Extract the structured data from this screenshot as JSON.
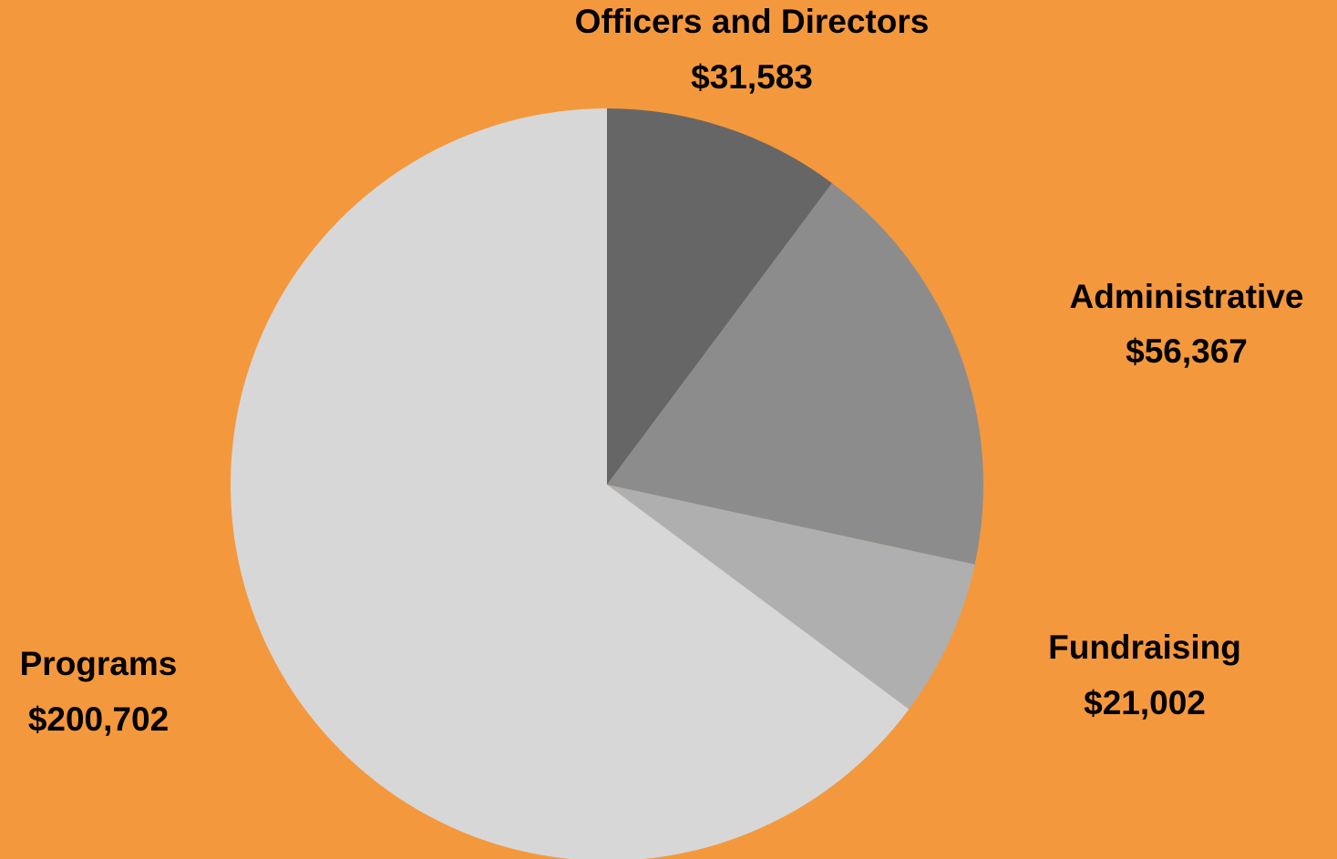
{
  "chart_data": {
    "type": "pie",
    "categories": [
      "Officers and Directors",
      "Administrative",
      "Fundraising",
      "Programs"
    ],
    "values": [
      31583,
      56367,
      21002,
      200702
    ],
    "value_labels": [
      "$31,583",
      "$56,367",
      "$21,002",
      "$200,702"
    ],
    "colors": [
      "#666666",
      "#8c8c8c",
      "#afafaf",
      "#d7d7d7"
    ]
  }
}
